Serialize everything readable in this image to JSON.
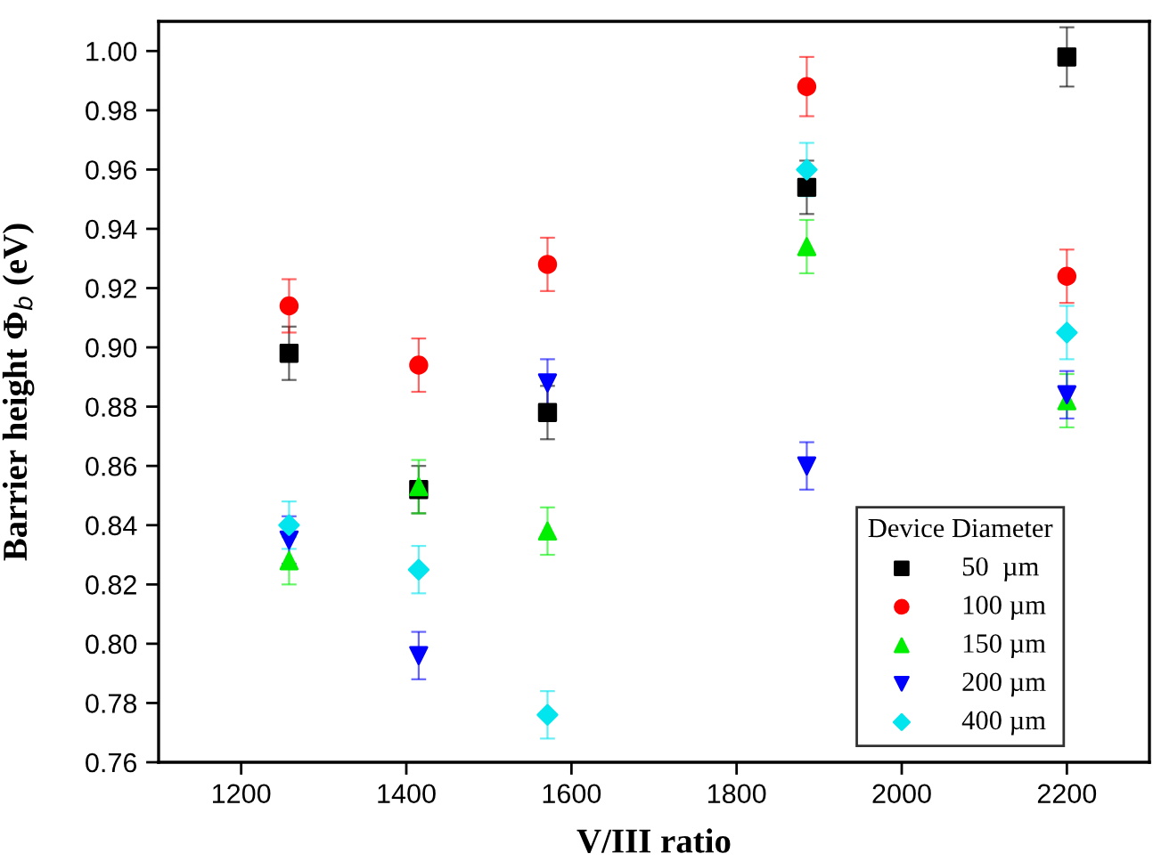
{
  "chart_data": {
    "type": "scatter",
    "xlabel": "V/III ratio",
    "ylabel": "Barrier height Φ$_{b}$ (eV)",
    "legend_title": "Device Diameter",
    "legend": "bottom right",
    "grid": false,
    "x": [
      1258,
      1415,
      1571,
      1885,
      2200
    ],
    "xlim": [
      1100,
      2300
    ],
    "xticks": [
      1200,
      1400,
      1600,
      1800,
      2000,
      2200
    ],
    "ylim": [
      0.76,
      1.01
    ],
    "yticks": [
      {
        "value": 0.76,
        "label": "0.76"
      },
      {
        "value": 0.78,
        "label": "0.78"
      },
      {
        "value": 0.8,
        "label": "0.80"
      },
      {
        "value": 0.82,
        "label": "0.82"
      },
      {
        "value": 0.84,
        "label": "0.84"
      },
      {
        "value": 0.86,
        "label": "0.86"
      },
      {
        "value": 0.88,
        "label": "0.88"
      },
      {
        "value": 0.9,
        "label": "0.90"
      },
      {
        "value": 0.92,
        "label": "0.92"
      },
      {
        "value": 0.94,
        "label": "0.94"
      },
      {
        "value": 0.96,
        "label": "0.96"
      },
      {
        "value": 0.98,
        "label": "0.98"
      },
      {
        "value": 1.0,
        "label": "1.00"
      }
    ],
    "series": [
      {
        "name": "50  µm",
        "color": "#000000",
        "marker": "square",
        "values": [
          0.898,
          0.852,
          0.878,
          0.954,
          0.998
        ],
        "errors": [
          0.009,
          0.008,
          0.009,
          0.009,
          0.01
        ]
      },
      {
        "name": "100 µm",
        "color": "#ff0000",
        "marker": "circle",
        "values": [
          0.914,
          0.894,
          0.928,
          0.988,
          0.924
        ],
        "errors": [
          0.009,
          0.009,
          0.009,
          0.01,
          0.009
        ]
      },
      {
        "name": "150 µm",
        "color": "#00ee00",
        "marker": "triangle",
        "values": [
          0.828,
          0.853,
          0.838,
          0.934,
          0.882
        ],
        "errors": [
          0.008,
          0.009,
          0.008,
          0.009,
          0.009
        ]
      },
      {
        "name": "200 µm",
        "color": "#0000ff",
        "values": [
          0.835,
          0.796,
          0.888,
          0.86,
          0.884
        ],
        "errors": [
          0.008,
          0.008,
          0.008,
          0.008,
          0.008
        ]
      },
      {
        "name": "400 µm",
        "color": "#00e5ee",
        "marker": "diamond",
        "values": [
          0.84,
          0.825,
          0.776,
          0.96,
          0.905
        ],
        "errors": [
          0.008,
          0.008,
          0.008,
          0.009,
          0.009
        ]
      }
    ]
  }
}
